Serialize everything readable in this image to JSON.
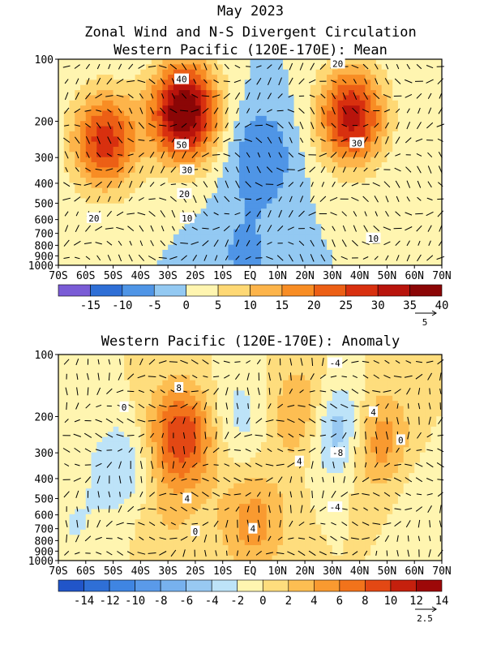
{
  "page": {
    "title_line1": "May 2023",
    "title_line2": "Zonal Wind and N-S Divergent Circulation"
  },
  "chart_data": [
    {
      "type": "heatmap",
      "title": "Western Pacific (120E-170E): Mean",
      "x_ticks": [
        "70S",
        "60S",
        "50S",
        "40S",
        "30S",
        "20S",
        "10S",
        "EQ",
        "10N",
        "20N",
        "30N",
        "40N",
        "50N",
        "60N",
        "70N"
      ],
      "x_range": [
        -70,
        70
      ],
      "y_ticks": [
        100,
        200,
        300,
        400,
        500,
        600,
        700,
        800,
        900,
        1000
      ],
      "y_range_hpa": [
        1000,
        100
      ],
      "y_scale": "log",
      "colorbar": {
        "labels": [
          "-15",
          "-10",
          "-5",
          "0",
          "5",
          "10",
          "15",
          "20",
          "25",
          "30",
          "35",
          "40"
        ],
        "colors": [
          "#7a5cd6",
          "#2f6fd6",
          "#4f95e6",
          "#93c9f2",
          "#fff5b0",
          "#fed874",
          "#fdb44a",
          "#f88d24",
          "#ec5f15",
          "#d8300f",
          "#b8140c",
          "#8b0606"
        ],
        "bounds": [
          -20,
          -15,
          -10,
          -5,
          0,
          5,
          10,
          15,
          20,
          25,
          30,
          35,
          40
        ]
      },
      "vector_reference": "5",
      "centers": [
        {
          "lat": -53,
          "p": 250,
          "value": 28
        },
        {
          "lat": -24,
          "p": 180,
          "value": 42
        },
        {
          "lat": 37,
          "p": 190,
          "value": 32
        },
        {
          "lat": 4,
          "p": 300,
          "value": -10
        },
        {
          "lat": -2,
          "p": 900,
          "value": -6
        }
      ],
      "contour_labels": [
        {
          "text": "40",
          "lat": -25,
          "p": 125
        },
        {
          "text": "50",
          "lat": -25,
          "p": 260
        },
        {
          "text": "30",
          "lat": -23,
          "p": 345
        },
        {
          "text": "20",
          "lat": -24,
          "p": 450
        },
        {
          "text": "10",
          "lat": -23,
          "p": 590
        },
        {
          "text": "20",
          "lat": -57,
          "p": 590
        },
        {
          "text": "20",
          "lat": 32,
          "p": 105
        },
        {
          "text": "30",
          "lat": 39,
          "p": 255
        },
        {
          "text": "10",
          "lat": 45,
          "p": 740
        }
      ]
    },
    {
      "type": "heatmap",
      "title": "Western Pacific (120E-170E): Anomaly",
      "x_ticks": [
        "70S",
        "60S",
        "50S",
        "40S",
        "30S",
        "20S",
        "10S",
        "EQ",
        "10N",
        "20N",
        "30N",
        "40N",
        "50N",
        "60N",
        "70N"
      ],
      "x_range": [
        -70,
        70
      ],
      "y_ticks": [
        100,
        200,
        300,
        400,
        500,
        600,
        700,
        800,
        900,
        1000
      ],
      "y_range_hpa": [
        1000,
        100
      ],
      "y_scale": "log",
      "colorbar": {
        "labels": [
          "-14",
          "-12",
          "-10",
          "-8",
          "-6",
          "-4",
          "-2",
          "0",
          "2",
          "4",
          "6",
          "8",
          "10",
          "12",
          "14"
        ],
        "colors": [
          "#2155c9",
          "#2f6fd6",
          "#3f85e2",
          "#5a9ae9",
          "#77b1ee",
          "#98c9f2",
          "#bde3f8",
          "#fff5b0",
          "#fedd7d",
          "#fdbe52",
          "#f99a30",
          "#f2731b",
          "#e34814",
          "#c5200d",
          "#9d0808"
        ],
        "bounds": [
          -16,
          -14,
          -12,
          -10,
          -8,
          -6,
          -4,
          -2,
          0,
          2,
          4,
          6,
          8,
          10,
          12,
          14
        ]
      },
      "vector_reference": "2.5",
      "centers": [
        {
          "lat": -25,
          "p": 250,
          "value": 10
        },
        {
          "lat": 20,
          "p": 200,
          "value": 6
        },
        {
          "lat": 46,
          "p": 260,
          "value": 6
        },
        {
          "lat": 1,
          "p": 650,
          "value": 5
        },
        {
          "lat": -30,
          "p": 600,
          "value": 2
        },
        {
          "lat": -47,
          "p": 350,
          "value": -4
        },
        {
          "lat": 31,
          "p": 230,
          "value": -8
        },
        {
          "lat": -4,
          "p": 200,
          "value": -3
        },
        {
          "lat": -65,
          "p": 700,
          "value": -2
        },
        {
          "lat": 65,
          "p": 500,
          "value": -2
        }
      ],
      "contour_labels": [
        {
          "text": "8",
          "lat": -26,
          "p": 145
        },
        {
          "text": "0",
          "lat": -46,
          "p": 180
        },
        {
          "text": "4",
          "lat": -23,
          "p": 500
        },
        {
          "text": "0",
          "lat": -20,
          "p": 720
        },
        {
          "text": "4",
          "lat": 1,
          "p": 700
        },
        {
          "text": "4",
          "lat": 18,
          "p": 330
        },
        {
          "text": "-4",
          "lat": 31,
          "p": 110
        },
        {
          "text": "-8",
          "lat": 32,
          "p": 300
        },
        {
          "text": "-4",
          "lat": 31,
          "p": 550
        },
        {
          "text": "4",
          "lat": 45,
          "p": 190
        },
        {
          "text": "0",
          "lat": 55,
          "p": 260
        }
      ]
    }
  ]
}
